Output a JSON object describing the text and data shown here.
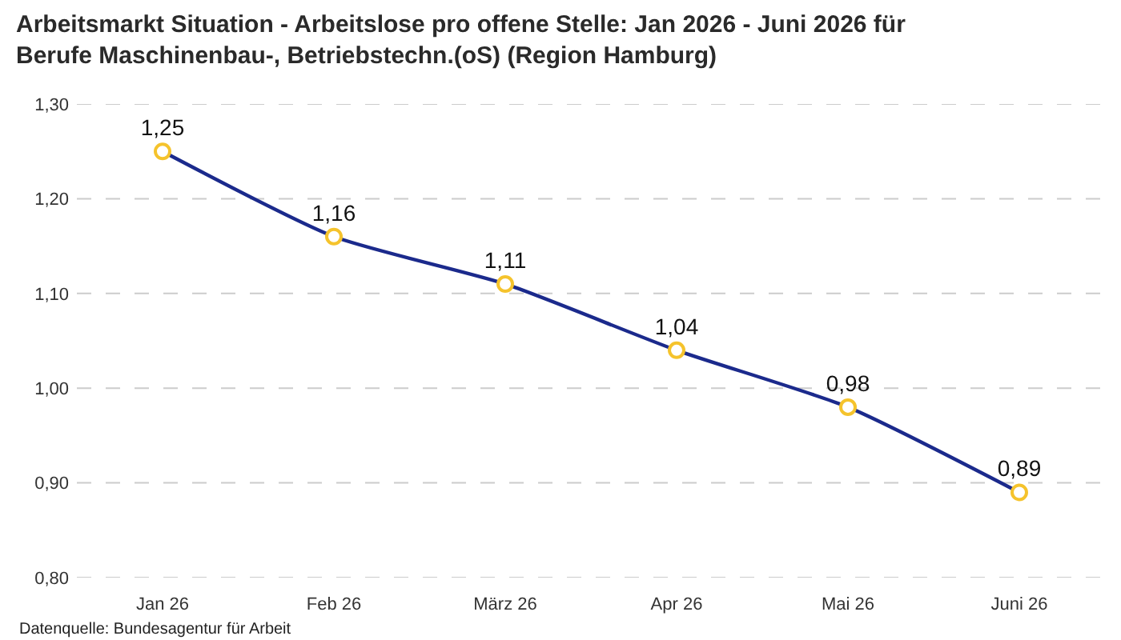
{
  "chart_data": {
    "type": "line",
    "title": "Arbeitsmarkt Situation - Arbeitslose pro offene Stelle: Jan 2026 - Juni 2026 für Berufe Maschinenbau-, Betriebstechn.(oS) (Region Hamburg)",
    "categories": [
      "Jan 26",
      "Feb 26",
      "März 26",
      "Apr 26",
      "Mai 26",
      "Juni 26"
    ],
    "values": [
      1.25,
      1.16,
      1.11,
      1.04,
      0.98,
      0.89
    ],
    "value_labels": [
      "1,25",
      "1,16",
      "1,11",
      "1,04",
      "0,98",
      "0,89"
    ],
    "color": "#1b2a8c",
    "colors": [
      "#f5c32c",
      "#f5c32c",
      "#f5c32c",
      "#f5c32c",
      "#f5c32c",
      "#f5c32c"
    ],
    "marker": "circle",
    "ylim": [
      0.8,
      1.3
    ],
    "yticks": [
      {
        "value": 0.8,
        "label": "0,80"
      },
      {
        "value": 0.9,
        "label": "0,90"
      },
      {
        "value": 1.0,
        "label": "1,00"
      },
      {
        "value": 1.1,
        "label": "1,10"
      },
      {
        "value": 1.2,
        "label": "1,20"
      },
      {
        "value": 1.3,
        "label": "1,30"
      }
    ],
    "grid": "y",
    "annotations": [
      "Datenquelle: Bundesagentur für Arbeit"
    ]
  }
}
